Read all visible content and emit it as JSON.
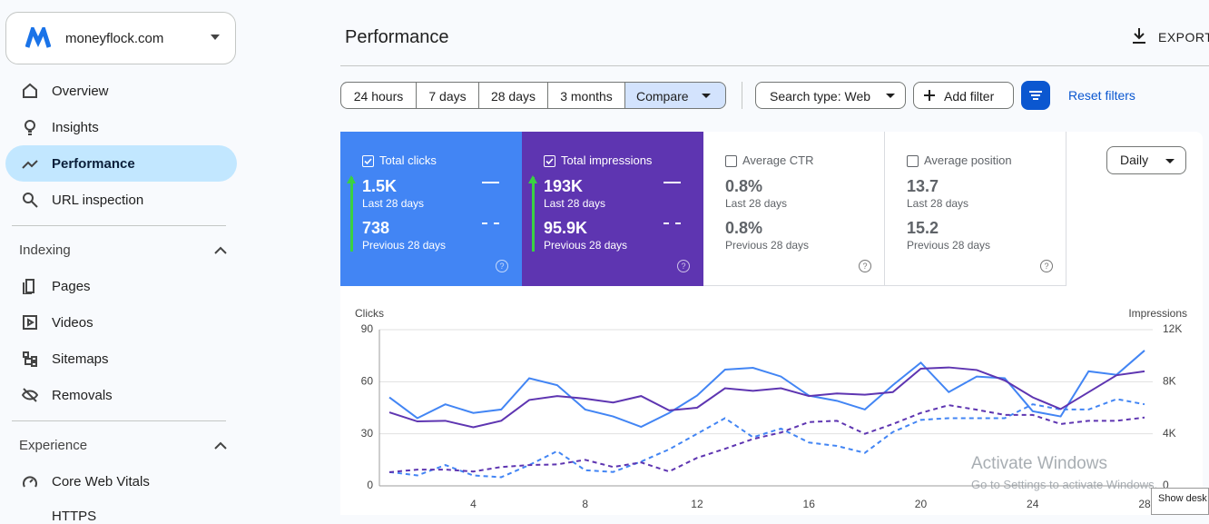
{
  "sidebar": {
    "site": "moneyflock.com",
    "nav": [
      "Overview",
      "Insights",
      "Performance",
      "URL inspection"
    ],
    "sections": [
      {
        "title": "Indexing",
        "items": [
          "Pages",
          "Videos",
          "Sitemaps",
          "Removals"
        ]
      },
      {
        "title": "Experience",
        "items": [
          "Core Web Vitals",
          "HTTPS"
        ]
      }
    ]
  },
  "header": {
    "title": "Performance",
    "export": "EXPORT"
  },
  "filters": {
    "ranges": [
      "24 hours",
      "7 days",
      "28 days",
      "3 months",
      "Compare"
    ],
    "search_type": "Search type: Web",
    "add_filter": "Add filter",
    "reset": "Reset filters"
  },
  "metrics": [
    {
      "label": "Total clicks",
      "current": "1.5K",
      "current_period": "Last 28 days",
      "previous": "738",
      "previous_period": "Previous 28 days"
    },
    {
      "label": "Total impressions",
      "current": "193K",
      "current_period": "Last 28 days",
      "previous": "95.9K",
      "previous_period": "Previous 28 days"
    },
    {
      "label": "Average CTR",
      "current": "0.8%",
      "current_period": "Last 28 days",
      "previous": "0.8%",
      "previous_period": "Previous 28 days"
    },
    {
      "label": "Average position",
      "current": "13.7",
      "current_period": "Last 28 days",
      "previous": "15.2",
      "previous_period": "Previous 28 days"
    }
  ],
  "granularity": "Daily",
  "chart_data": {
    "type": "line",
    "ylabel": "Clicks",
    "y2label": "Impressions",
    "x": [
      1,
      2,
      3,
      4,
      5,
      6,
      7,
      8,
      9,
      10,
      11,
      12,
      13,
      14,
      15,
      16,
      17,
      18,
      19,
      20,
      21,
      22,
      23,
      24,
      25,
      26,
      27,
      28
    ],
    "xlim": [
      1,
      28
    ],
    "xticks": [
      4,
      8,
      12,
      16,
      20,
      24,
      28
    ],
    "ylim": [
      0,
      90
    ],
    "yticks": [
      0,
      30,
      60,
      90
    ],
    "y2lim": [
      0,
      12000
    ],
    "y2ticks": [
      0,
      {
        "value": 4000,
        "label": "4K"
      },
      {
        "value": 8000,
        "label": "8K"
      },
      {
        "value": 12000,
        "label": "12K"
      }
    ],
    "grid": true,
    "series": [
      {
        "color": "#4285f4",
        "dashed": false,
        "values": [
          51,
          39,
          47,
          42,
          44,
          62,
          58,
          44,
          40,
          34,
          42,
          52,
          67,
          68,
          63,
          52,
          49,
          44,
          58,
          71,
          54,
          63,
          62,
          43,
          40,
          66,
          64,
          78
        ]
      },
      {
        "color": "#4285f4",
        "dashed": true,
        "values": [
          8,
          6,
          12,
          6,
          5,
          12,
          20,
          9,
          8,
          14,
          21,
          30,
          39,
          28,
          33,
          25,
          23,
          19,
          31,
          38,
          39,
          39,
          39,
          47,
          44,
          44,
          50,
          47
        ]
      },
      {
        "color": "#5e35b1",
        "dashed": false,
        "axis": "y2",
        "values": [
          5650,
          4950,
          5000,
          4500,
          5000,
          6600,
          6900,
          6700,
          6400,
          6900,
          5800,
          6000,
          7500,
          7300,
          7500,
          6900,
          7100,
          7000,
          7200,
          9000,
          9100,
          8900,
          8100,
          6800,
          5900,
          7200,
          8500,
          8800
        ]
      },
      {
        "color": "#5e35b1",
        "dashed": true,
        "axis": "y2",
        "values": [
          1050,
          1250,
          1250,
          1100,
          1450,
          1600,
          1650,
          2000,
          1450,
          1800,
          1100,
          2150,
          2850,
          3600,
          4100,
          4900,
          5000,
          4000,
          4750,
          5600,
          6200,
          5850,
          5450,
          5450,
          4750,
          5000,
          5000,
          5250
        ]
      }
    ]
  },
  "watermark": {
    "title": "Activate Windows",
    "text": "Go to Settings to activate Windows."
  },
  "taskbar": "Show desk"
}
